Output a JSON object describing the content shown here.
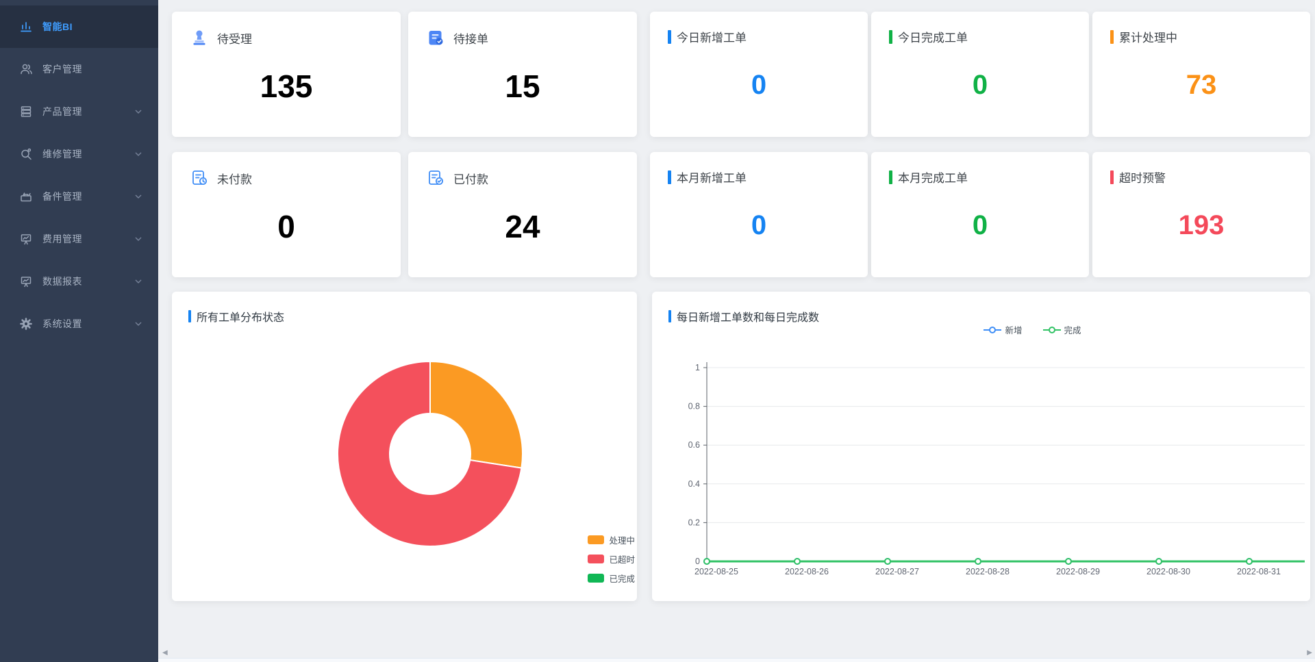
{
  "app": {
    "name": "智能BI"
  },
  "colors": {
    "blue": "#1583f2",
    "green": "#10b146",
    "orange": "#fb9116",
    "red": "#f4495a",
    "page_bg": "#eef0f3",
    "sidebar_bg": "#313d52",
    "sidebar_active_bg": "#263042",
    "sidebar_text": "#a9b4c4",
    "sidebar_active_text": "#3f9dff"
  },
  "sidebar": {
    "items": [
      {
        "label": "智能BI",
        "icon": "bar-chart-icon",
        "active": true,
        "has_chevron": false
      },
      {
        "label": "客户管理",
        "icon": "users-icon",
        "active": false,
        "has_chevron": false
      },
      {
        "label": "产品管理",
        "icon": "products-stack-icon",
        "active": false,
        "has_chevron": true
      },
      {
        "label": "维修管理",
        "icon": "repair-search-icon",
        "active": false,
        "has_chevron": true
      },
      {
        "label": "备件管理",
        "icon": "toolbox-icon",
        "active": false,
        "has_chevron": true
      },
      {
        "label": "费用管理",
        "icon": "expense-board-icon",
        "active": false,
        "has_chevron": true
      },
      {
        "label": "数据报表",
        "icon": "report-board-icon",
        "active": false,
        "has_chevron": true
      },
      {
        "label": "系统设置",
        "icon": "gear-icon",
        "active": false,
        "has_chevron": true
      }
    ]
  },
  "cards": {
    "row1": [
      {
        "title": "待受理",
        "value": "135",
        "icon": "stamp-icon"
      },
      {
        "title": "待接单",
        "value": "15",
        "icon": "clipboard-icon"
      },
      {
        "title": "今日新增工单",
        "value": "0",
        "accent": "blue"
      },
      {
        "title": "今日完成工单",
        "value": "0",
        "accent": "green"
      },
      {
        "title": "累计处理中",
        "value": "73",
        "accent": "orange"
      }
    ],
    "row2": [
      {
        "title": "未付款",
        "value": "0",
        "icon": "invoice-clock-icon"
      },
      {
        "title": "已付款",
        "value": "24",
        "icon": "invoice-check-icon"
      },
      {
        "title": "本月新增工单",
        "value": "0",
        "accent": "blue"
      },
      {
        "title": "本月完成工单",
        "value": "0",
        "accent": "green"
      },
      {
        "title": "超时预警",
        "value": "193",
        "accent": "red"
      }
    ]
  },
  "panels": {
    "donut_title": "所有工单分布状态",
    "line_title": "每日新增工单数和每日完成数"
  },
  "chart_data": [
    {
      "type": "pie",
      "title": "所有工单分布状态",
      "labels": [
        "处理中",
        "已超时",
        "已完成"
      ],
      "values": [
        73,
        193,
        0
      ],
      "colors": [
        "#fb9a23",
        "#f4505c",
        "#10b755"
      ],
      "donut": true,
      "inner_radius_ratio": 0.44,
      "start_angle": "12-oclock",
      "legend_position": "bottom-right"
    },
    {
      "type": "line",
      "title": "每日新增工单数和每日完成数",
      "categories": [
        "2022-08-25",
        "2022-08-26",
        "2022-08-27",
        "2022-08-28",
        "2022-08-29",
        "2022-08-30",
        "2022-08-31"
      ],
      "series": [
        {
          "name": "新增",
          "color": "#3e8ef7",
          "values": [
            0,
            0,
            0,
            0,
            0,
            0,
            0
          ]
        },
        {
          "name": "完成",
          "color": "#30c264",
          "values": [
            0,
            0,
            0,
            0,
            0,
            0,
            0
          ]
        }
      ],
      "ylim": [
        0,
        1
      ],
      "y_ticks": [
        "0",
        "0.2",
        "0.4",
        "0.6",
        "0.8",
        "1"
      ],
      "grid": true,
      "legend_position": "top"
    }
  ],
  "scrollbar": {
    "left_arrow": "◀",
    "right_arrow": "▶"
  }
}
